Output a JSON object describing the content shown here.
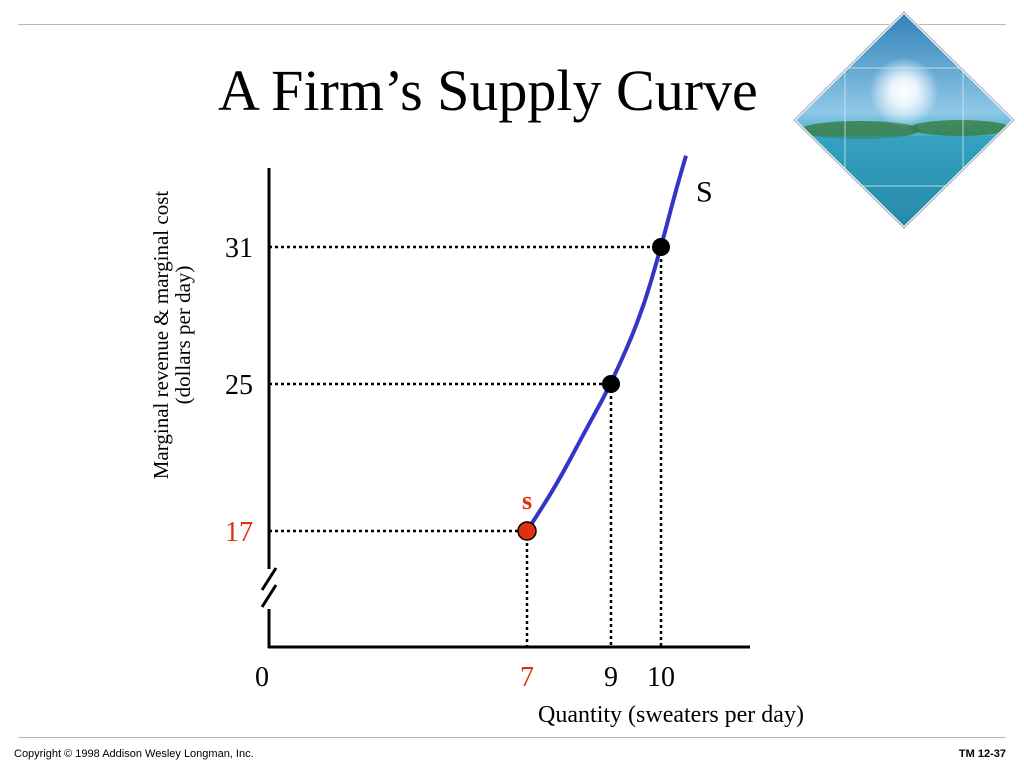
{
  "slide": {
    "title": "A Firm’s Supply Curve",
    "copyright": "Copyright © 1998 Addison Wesley Longman, Inc.",
    "slide_number": "TM 12-37"
  },
  "colors": {
    "curve": "#3434c8",
    "highlight": "#e03010",
    "axis": "#000000",
    "guide": "#000000"
  },
  "image": {
    "description_icon": "ocean-island-sunburst-photo"
  },
  "chart_data": {
    "type": "line",
    "title": "A Firm’s Supply Curve",
    "xlabel": "Quantity (sweaters per day)",
    "ylabel_line1": "Marginal revenue & marginal cost",
    "ylabel_line2": "(dollars per day)",
    "x_origin_label": "0",
    "y_axis_break": true,
    "xlim": [
      0,
      11
    ],
    "ylim": [
      14,
      34
    ],
    "series": [
      {
        "name": "S",
        "label_color": "#000000",
        "curve": [
          [
            7,
            17
          ],
          [
            7.7,
            19.5
          ],
          [
            8.4,
            22.5
          ],
          [
            9,
            25
          ],
          [
            9.6,
            28
          ],
          [
            10,
            31
          ],
          [
            10.3,
            33.5
          ],
          [
            10.5,
            35
          ]
        ]
      }
    ],
    "points": [
      {
        "x": 7,
        "y": 17,
        "label": "s",
        "highlight": true
      },
      {
        "x": 9,
        "y": 25,
        "highlight": false
      },
      {
        "x": 10,
        "y": 31,
        "highlight": false
      }
    ],
    "x_ticks": [
      {
        "value": 7,
        "label": "7",
        "highlight": true
      },
      {
        "value": 9,
        "label": "9",
        "highlight": false
      },
      {
        "value": 10,
        "label": "10",
        "highlight": false
      }
    ],
    "y_ticks": [
      {
        "value": 17,
        "label": "17",
        "highlight": true
      },
      {
        "value": 25,
        "label": "25",
        "highlight": false
      },
      {
        "value": 31,
        "label": "31",
        "highlight": false
      }
    ]
  }
}
